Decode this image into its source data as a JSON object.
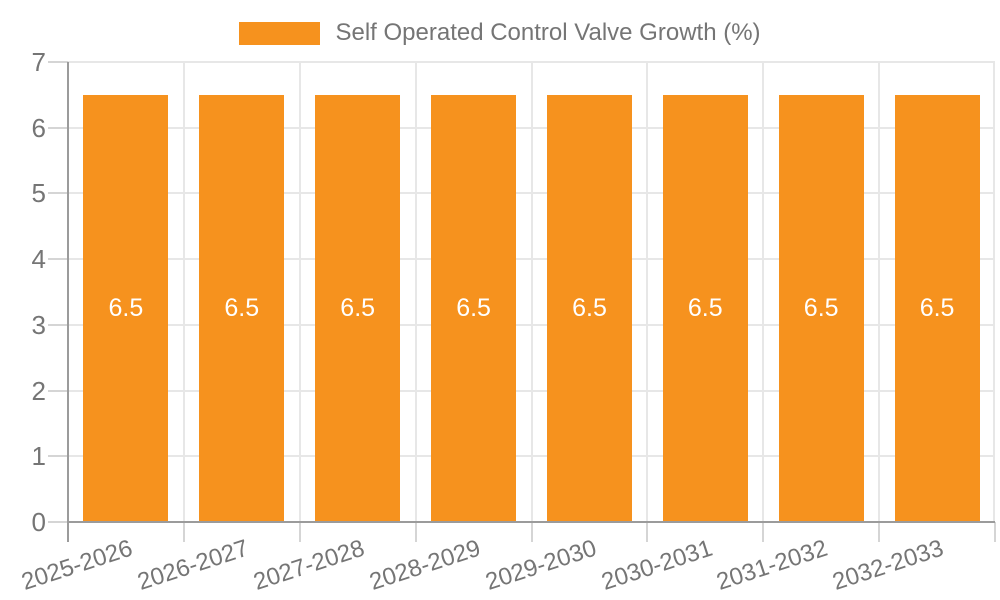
{
  "chart_data": {
    "type": "bar",
    "title": "",
    "legend_position": "top",
    "grid": true,
    "categories": [
      "2025-2026",
      "2026-2027",
      "2027-2028",
      "2028-2029",
      "2029-2030",
      "2030-2031",
      "2031-2032",
      "2032-2033"
    ],
    "series": [
      {
        "name": "Self Operated Control Valve Growth (%)",
        "values": [
          6.5,
          6.5,
          6.5,
          6.5,
          6.5,
          6.5,
          6.5,
          6.5
        ]
      }
    ],
    "ylim": [
      0,
      7
    ],
    "yticks": [
      0,
      1,
      2,
      3,
      4,
      5,
      6,
      7
    ],
    "xlabel": "",
    "ylabel": "",
    "colors": {
      "bar": "#F6921E",
      "bar_label": "#FFFFFF",
      "axis": "#9B9B9B",
      "gridline": "#E7E7E7",
      "tick": "#D5D5D5",
      "text": "#757575",
      "background": "#FFFFFF"
    }
  }
}
